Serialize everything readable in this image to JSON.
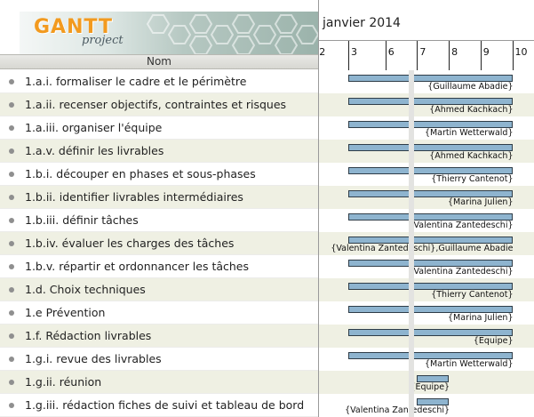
{
  "app": {
    "logo_text": "GANTT",
    "logo_sub": "project"
  },
  "columns": {
    "name_header": "Nom"
  },
  "timeline": {
    "month": "janvier 2014",
    "day_labels": [
      "2",
      "3",
      "6",
      "7",
      "8",
      "9",
      "10"
    ]
  },
  "tasks": [
    {
      "name": "1.a.i. formaliser le cadre et le périmètre",
      "assignee": "{Guillaume Abadie}",
      "start": "2014-01-03",
      "end": "2014-01-10"
    },
    {
      "name": "1.a.ii. recenser objectifs, contraintes et risques",
      "assignee": "{Ahmed Kachkach}",
      "start": "2014-01-03",
      "end": "2014-01-10"
    },
    {
      "name": "1.a.iii. organiser l'équipe",
      "assignee": "{Martin Wetterwald}",
      "start": "2014-01-03",
      "end": "2014-01-10"
    },
    {
      "name": "1.a.v. définir les livrables",
      "assignee": "{Ahmed Kachkach}",
      "start": "2014-01-03",
      "end": "2014-01-10"
    },
    {
      "name": "1.b.i. découper en phases et sous-phases",
      "assignee": "{Thierry Cantenot}",
      "start": "2014-01-03",
      "end": "2014-01-10"
    },
    {
      "name": "1.b.ii. identifier livrables intermédiaires",
      "assignee": "{Marina Julien}",
      "start": "2014-01-03",
      "end": "2014-01-10"
    },
    {
      "name": "1.b.iii. définir tâches",
      "assignee": "{Valentina Zantedeschi}",
      "start": "2014-01-03",
      "end": "2014-01-10"
    },
    {
      "name": "1.b.iv. évaluer les charges des tâches",
      "assignee": "{Valentina Zantedeschi},Guillaume Abadie",
      "start": "2014-01-03",
      "end": "2014-01-10"
    },
    {
      "name": "1.b.v. répartir et ordonnancer les tâches",
      "assignee": "{Valentina Zantedeschi}",
      "start": "2014-01-03",
      "end": "2014-01-10"
    },
    {
      "name": "1.d. Choix techniques",
      "assignee": "{Thierry Cantenot}",
      "start": "2014-01-03",
      "end": "2014-01-10"
    },
    {
      "name": "1.e Prévention",
      "assignee": "{Marina Julien}",
      "start": "2014-01-03",
      "end": "2014-01-10"
    },
    {
      "name": "1.f. Rédaction livrables",
      "assignee": "{Equipe}",
      "start": "2014-01-03",
      "end": "2014-01-10"
    },
    {
      "name": "1.g.i. revue des livrables",
      "assignee": "{Martin Wetterwald}",
      "start": "2014-01-03",
      "end": "2014-01-10"
    },
    {
      "name": "1.g.ii. réunion",
      "assignee": "{Equipe}",
      "start": "2014-01-07",
      "end": "2014-01-08"
    },
    {
      "name": "1.g.iii. rédaction fiches de suivi et tableau de bord",
      "assignee": "{Valentina Zantedeschi}",
      "start": "2014-01-07",
      "end": "2014-01-08"
    }
  ],
  "colors": {
    "bar_fill": "#8eb4cf",
    "bar_border": "#2f3d48",
    "row_alt": "#eff0e3",
    "logo_accent": "#f29a1f"
  }
}
